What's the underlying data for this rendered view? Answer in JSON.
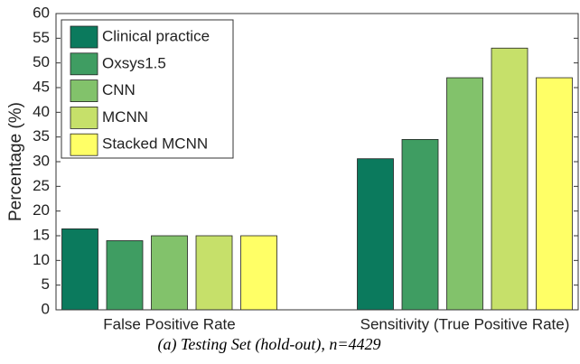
{
  "chart_data": {
    "type": "bar",
    "y_label": "Percentage (%)",
    "caption": "(a)   Testing Set (hold-out), n=4429",
    "categories": [
      "False Positive Rate",
      "Sensitivity (True Positive Rate)"
    ],
    "series": [
      {
        "name": "Clinical practice",
        "color": "#0b7a5d",
        "values": [
          16.4,
          30.6
        ]
      },
      {
        "name": "Oxsys1.5",
        "color": "#3f9d62",
        "values": [
          14,
          34.5
        ]
      },
      {
        "name": "CNN",
        "color": "#82c26b",
        "values": [
          15,
          47
        ]
      },
      {
        "name": "MCNN",
        "color": "#c6e06a",
        "values": [
          15,
          53
        ]
      },
      {
        "name": "Stacked MCNN",
        "color": "#ffff66",
        "values": [
          15,
          47
        ]
      }
    ],
    "ylim": [
      0,
      60
    ],
    "yticks": [
      0,
      5,
      10,
      15,
      20,
      25,
      30,
      35,
      40,
      45,
      50,
      55,
      60
    ],
    "legend": "upper-left"
  }
}
